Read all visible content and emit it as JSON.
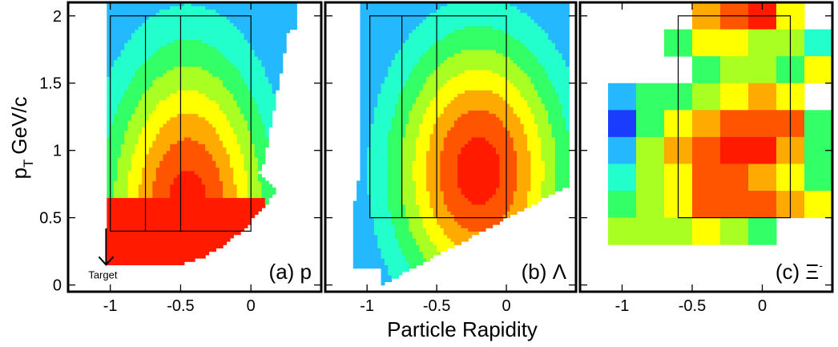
{
  "chart_data": {
    "type": "heatmap",
    "xlabel": "Particle Rapidity",
    "ylabel_main": "p",
    "ylabel_sub": "T",
    "ylabel_unit": "GeV/c",
    "ylim": [
      -0.05,
      2.1
    ],
    "xlim": [
      -1.3,
      0.5
    ],
    "y_ticks": [
      0,
      0.5,
      1,
      1.5,
      2
    ],
    "y_tick_labels": [
      "0",
      "0.5",
      "1",
      "1.5",
      "2"
    ],
    "x_ticks": [
      -1,
      -0.5,
      0
    ],
    "x_tick_labels": [
      "-1",
      "-0.5",
      "0"
    ],
    "colormap": [
      "#1a3cff",
      "#25b8ff",
      "#22ffcc",
      "#33ff66",
      "#aaff22",
      "#ffff00",
      "#ffaa00",
      "#ff5500",
      "#ff1a00"
    ],
    "annotation": "Target",
    "target_arrow": {
      "x": -1.03,
      "y_from": 0.42,
      "y_to": 0.15
    },
    "panels": [
      {
        "label": "(a) p",
        "bins_y": [
          0.4,
          2.0
        ],
        "bins_x": [
          -1.0,
          -0.75,
          -0.5,
          0.0
        ],
        "peak": {
          "x": -0.45,
          "y": 0.55
        },
        "spread": {
          "x": 0.75,
          "y": 1.55
        }
      },
      {
        "label": "(b) Λ",
        "bins_y": [
          0.5,
          2.0
        ],
        "bins_x": [
          -0.98,
          -0.75,
          -0.5,
          0.0
        ],
        "peak": {
          "x": -0.2,
          "y": 0.85
        },
        "spread": {
          "x": 0.8,
          "y": 1.3
        }
      },
      {
        "label": "(c) Ξ",
        "label_sup": "-",
        "bins_y": [
          0.5,
          2.0
        ],
        "bins_x": [
          -0.6,
          0.2
        ],
        "grid_x": [
          -1.1,
          -0.9,
          -0.7,
          -0.5,
          -0.3,
          -0.1,
          0.1,
          0.3
        ],
        "grid_y": [
          0.5,
          0.7,
          0.9,
          1.1,
          1.3,
          1.5,
          1.7,
          1.9,
          2.1
        ],
        "cells": [
          [
            -1,
            -1,
            -1,
            6,
            7,
            8,
            5,
            -1
          ],
          [
            -1,
            -1,
            3,
            5,
            5,
            4,
            4,
            2
          ],
          [
            -1,
            -1,
            -1,
            3,
            4,
            4,
            3,
            5
          ],
          [
            1,
            3,
            3,
            4,
            5,
            6,
            5,
            -1
          ],
          [
            0,
            3,
            5,
            6,
            7,
            7,
            7,
            3
          ],
          [
            1,
            4,
            6,
            7,
            8,
            8,
            6,
            3
          ],
          [
            2,
            4,
            5,
            7,
            7,
            6,
            5,
            3
          ],
          [
            3,
            4,
            5,
            7,
            7,
            7,
            6,
            5
          ],
          [
            4,
            4,
            4,
            5,
            4,
            3,
            -1,
            -1
          ]
        ]
      }
    ]
  }
}
